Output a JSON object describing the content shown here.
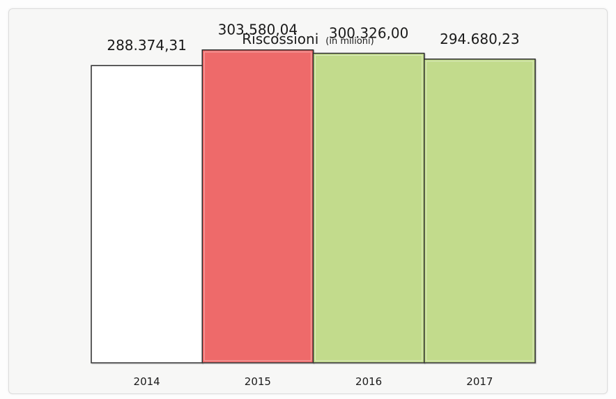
{
  "chart_data": {
    "type": "bar",
    "title": "Riscossioni",
    "subtitle": "(in milioni)",
    "categories": [
      "2014",
      "2015",
      "2016",
      "2017"
    ],
    "values": [
      288374.31,
      303580.04,
      300326.0,
      294680.23
    ],
    "value_labels": [
      "288.374,31",
      "303.580,04",
      "300.326,00",
      "294.680,23"
    ],
    "bar_colors": [
      "#ffffff",
      "#ee6b6b",
      "#c2db8c",
      "#c2db8c"
    ],
    "bar_stroke": "#2b2b2b",
    "ylim": [
      0,
      325000
    ],
    "grid": false,
    "legend": "none",
    "xlabel": "",
    "ylabel": ""
  }
}
